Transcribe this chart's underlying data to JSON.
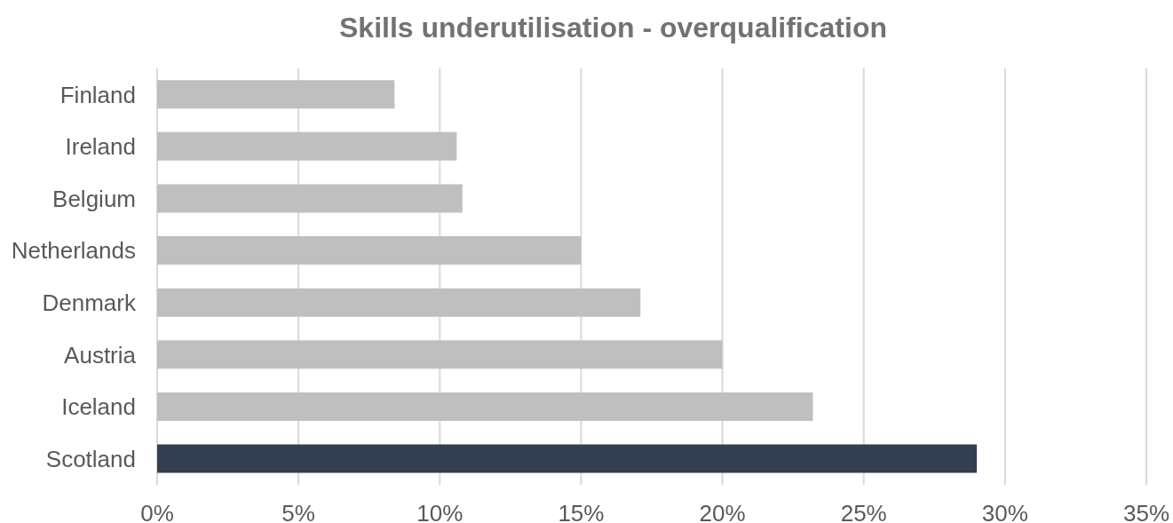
{
  "chart_data": {
    "type": "bar",
    "orientation": "horizontal",
    "title": "Skills underutilisation - overqualification",
    "categories": [
      "Finland",
      "Ireland",
      "Belgium",
      "Netherlands",
      "Denmark",
      "Austria",
      "Iceland",
      "Scotland"
    ],
    "values": [
      8.4,
      10.6,
      10.8,
      15.0,
      17.1,
      20.0,
      23.2,
      29.0
    ],
    "colors": [
      "#bfbfbf",
      "#bfbfbf",
      "#bfbfbf",
      "#bfbfbf",
      "#bfbfbf",
      "#bfbfbf",
      "#bfbfbf",
      "#333f50"
    ],
    "xlim": [
      0,
      35
    ],
    "xticks": [
      {
        "value": 0,
        "label": "0%"
      },
      {
        "value": 5,
        "label": "5%"
      },
      {
        "value": 10,
        "label": "10%"
      },
      {
        "value": 15,
        "label": "15%"
      },
      {
        "value": 20,
        "label": "20%"
      },
      {
        "value": 25,
        "label": "25%"
      },
      {
        "value": 30,
        "label": "30%"
      },
      {
        "value": 35,
        "label": "35%"
      }
    ],
    "grid": "x"
  }
}
